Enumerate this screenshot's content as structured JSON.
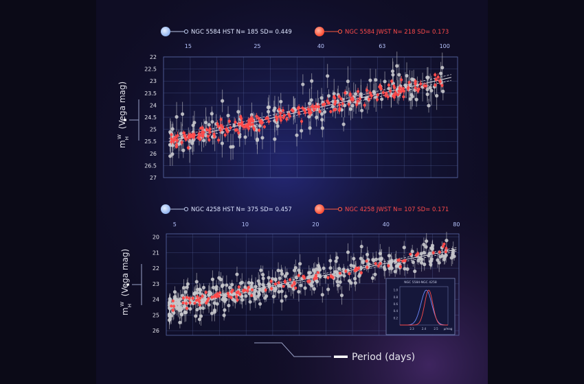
{
  "colors": {
    "hst": "#c8c8cc",
    "jwst": "#ff4b4b",
    "hst_marker": "#b7d1f7",
    "jwst_marker": "#ff5c40",
    "axis_text": "#e6e6ee",
    "tick_text": "#b8c6ff",
    "grid": "#5a6aa8"
  },
  "x_title": "Period (days)",
  "chart_data": [
    {
      "type": "scatter",
      "id": "ngc5584",
      "legend": [
        {
          "label": "NGC 5584 HST N=  185  SD= 0.449",
          "color": "#c8c8cc",
          "marker_color": "#b7d1f7"
        },
        {
          "label": "NGC 5584 JWST N=  218  SD= 0.173",
          "color": "#ff4b4b",
          "marker_color": "#ff5c40"
        }
      ],
      "ylabel": "m_H^W (Vega mag)",
      "ylabel_main": "m",
      "ylabel_sup": "W",
      "ylabel_sub": "H",
      "ylabel_rest": "(Vega mag)",
      "x_scale": "log",
      "xlim": [
        12.5,
        110
      ],
      "x_ticks": [
        15,
        25,
        40,
        63,
        100
      ],
      "x_tick_labels": [
        "15",
        "25",
        "40",
        "63",
        "100"
      ],
      "ylim": [
        27,
        22
      ],
      "y_ticks": [
        22,
        22.5,
        23,
        23.5,
        24,
        24.5,
        25,
        25.5,
        26,
        26.5,
        27
      ],
      "y_tick_labels": [
        "22",
        "22.5",
        "23",
        "23.5",
        "24",
        "24.5",
        "25",
        "25.5",
        "26",
        "26.5",
        "27"
      ],
      "fit": {
        "p1": 13,
        "m1": 25.5,
        "p2": 105,
        "m2": 22.85
      },
      "series": [
        {
          "name": "NGC 5584 HST",
          "n": 185,
          "sd": 0.449,
          "color": "#c8c8cc",
          "error_bar_mag": 0.45
        },
        {
          "name": "NGC 5584 JWST",
          "n": 218,
          "sd": 0.173,
          "color": "#ff4b4b",
          "error_bar_mag": 0.12
        }
      ]
    },
    {
      "type": "scatter",
      "id": "ngc4258",
      "legend": [
        {
          "label": "NGC 4258 HST N=  375  SD= 0.457",
          "color": "#c8c8cc",
          "marker_color": "#b7d1f7"
        },
        {
          "label": "NGC 4258 JWST N=  107  SD= 0.171",
          "color": "#ff4b4b",
          "marker_color": "#ff5c40"
        }
      ],
      "ylabel": "m_H^W (Vega mag)",
      "ylabel_main": "m",
      "ylabel_sup": "W",
      "ylabel_sub": "H",
      "ylabel_rest": "(Vega mag)",
      "x_scale": "log",
      "xlim": [
        4.6,
        82
      ],
      "x_ticks": [
        5,
        10,
        20,
        40,
        80
      ],
      "x_tick_labels": [
        "5",
        "10",
        "20",
        "40",
        "80"
      ],
      "ylim": [
        26.3,
        19.8
      ],
      "y_ticks": [
        20,
        21,
        22,
        23,
        24,
        25,
        26
      ],
      "y_tick_labels": [
        "20",
        "21",
        "22",
        "23",
        "24",
        "25",
        "26"
      ],
      "fit": {
        "p1": 5,
        "m1": 24.35,
        "p2": 80,
        "m2": 20.8
      },
      "series": [
        {
          "name": "NGC 4258 HST",
          "n": 375,
          "sd": 0.457,
          "color": "#c8c8cc",
          "error_bar_mag": 0.45
        },
        {
          "name": "NGC 4258 JWST",
          "n": 107,
          "sd": 0.171,
          "color": "#ff4b4b",
          "error_bar_mag": 0.12
        }
      ],
      "inset": {
        "type": "line",
        "title": "NGC 5584-NGC 4258",
        "x_ticks": [
          2.3,
          2.4,
          2.5
        ],
        "x_tick_labels": [
          "2.3",
          "2.4",
          "2.5"
        ],
        "x_unit_label": "μ/mag",
        "y_ticks": [
          0.2,
          0.4,
          0.6,
          0.8,
          1.0
        ],
        "y_tick_labels": [
          "0.2",
          "0.4",
          "0.6",
          "0.8",
          "1.0"
        ],
        "xlim": [
          2.2,
          2.6
        ],
        "ylim": [
          0,
          1.1
        ],
        "series": [
          {
            "name": "HST",
            "color": "#6f8cff",
            "mu": 2.42,
            "sigma": 0.045
          },
          {
            "name": "JWST",
            "color": "#ff4b4b",
            "mu": 2.44,
            "sigma": 0.034
          }
        ]
      }
    }
  ]
}
